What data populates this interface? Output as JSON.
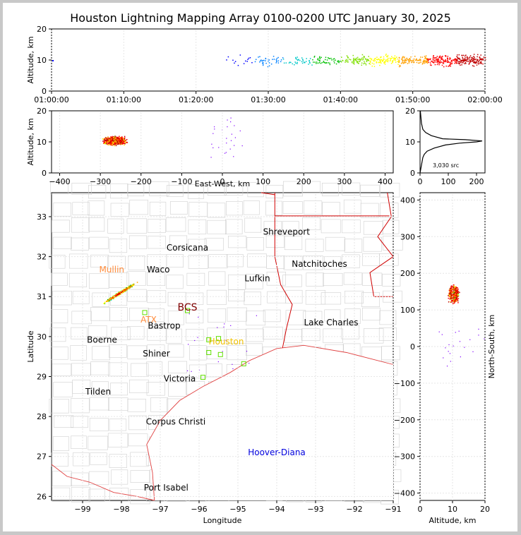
{
  "title": "Houston Lightning Mapping Array 0100-0200 UTC January 30, 2025",
  "chart_data": [
    {
      "type": "scatter",
      "panel": "time-altitude",
      "xlabel": "",
      "ylabel": "Altitude, km",
      "xticks": [
        "01:00:00",
        "01:10:00",
        "01:20:00",
        "01:30:00",
        "01:40:00",
        "01:50:00",
        "02:00:00"
      ],
      "xlim_minutes": [
        0,
        60
      ],
      "ylim": [
        0,
        20
      ],
      "yticks": [
        0,
        10,
        20
      ],
      "activity_start_minutes": 24,
      "peak_altitude_km": 10
    },
    {
      "type": "scatter",
      "panel": "east-west-altitude",
      "xlabel": "East-West, km",
      "ylabel": "Altitude, km",
      "xlim": [
        -420,
        420
      ],
      "xticks": [
        -400,
        -300,
        -200,
        -100,
        0,
        100,
        200,
        300,
        400
      ],
      "ylim": [
        0,
        20
      ],
      "yticks": [
        0,
        10,
        20
      ],
      "cluster_center": [
        -265,
        10.5
      ]
    },
    {
      "type": "line",
      "panel": "altitude-histogram",
      "xlim": [
        0,
        230
      ],
      "xticks": [
        0,
        100,
        200
      ],
      "ylim": [
        0,
        20
      ],
      "yticks": [
        0,
        10,
        20
      ],
      "annotation": "3,030 src",
      "profile": [
        [
          0,
          0
        ],
        [
          2,
          1
        ],
        [
          4,
          2
        ],
        [
          6,
          3
        ],
        [
          8,
          4
        ],
        [
          10,
          5
        ],
        [
          15,
          6
        ],
        [
          25,
          7
        ],
        [
          50,
          8
        ],
        [
          90,
          9
        ],
        [
          140,
          9.6
        ],
        [
          200,
          10
        ],
        [
          220,
          10.3
        ],
        [
          160,
          10.7
        ],
        [
          80,
          11
        ],
        [
          40,
          12
        ],
        [
          20,
          13
        ],
        [
          10,
          14
        ],
        [
          5,
          16
        ],
        [
          3,
          18
        ],
        [
          1,
          20
        ]
      ]
    },
    {
      "type": "scatter",
      "panel": "map",
      "xlabel": "Longitude",
      "ylabel": "Latitude",
      "xlim": [
        -99.8,
        -91.0
      ],
      "xticks": [
        -99,
        -98,
        -97,
        -96,
        -95,
        -94,
        -93,
        -92,
        -91
      ],
      "ylim": [
        25.9,
        33.6
      ],
      "yticks": [
        26,
        27,
        28,
        29,
        30,
        31,
        32,
        33
      ],
      "cities": [
        {
          "name": "Shreveport",
          "lon": -93.75,
          "lat": 32.55,
          "color": "#000000"
        },
        {
          "name": "Corsicana",
          "lon": -96.3,
          "lat": 32.15,
          "color": "#000000"
        },
        {
          "name": "Natchitoches",
          "lon": -92.9,
          "lat": 31.75,
          "color": "#000000"
        },
        {
          "name": "Mullin",
          "lon": -98.25,
          "lat": 31.6,
          "color": "#ff8c3c"
        },
        {
          "name": "Waco",
          "lon": -97.05,
          "lat": 31.6,
          "color": "#000000"
        },
        {
          "name": "Lufkin",
          "lon": -94.5,
          "lat": 31.38,
          "color": "#000000"
        },
        {
          "name": "BCS",
          "lon": -96.3,
          "lat": 30.65,
          "color": "#800000"
        },
        {
          "name": "ATX",
          "lon": -97.3,
          "lat": 30.35,
          "color": "#ff8c3c"
        },
        {
          "name": "Bastrop",
          "lon": -96.9,
          "lat": 30.2,
          "color": "#000000"
        },
        {
          "name": "Lake Charles",
          "lon": -92.6,
          "lat": 30.28,
          "color": "#000000"
        },
        {
          "name": "Houston",
          "lon": -95.3,
          "lat": 29.8,
          "color": "#f0c000"
        },
        {
          "name": "Boerne",
          "lon": -98.5,
          "lat": 29.85,
          "color": "#000000"
        },
        {
          "name": "Shiner",
          "lon": -97.1,
          "lat": 29.5,
          "color": "#000000"
        },
        {
          "name": "Victoria",
          "lon": -96.5,
          "lat": 28.88,
          "color": "#000000"
        },
        {
          "name": "Tilden",
          "lon": -98.6,
          "lat": 28.55,
          "color": "#000000"
        },
        {
          "name": "Corpus Christi",
          "lon": -96.6,
          "lat": 27.8,
          "color": "#000000"
        },
        {
          "name": "Hoover-Diana",
          "lon": -94.0,
          "lat": 27.03,
          "color": "#0000dd"
        },
        {
          "name": "Port Isabel",
          "lon": -96.85,
          "lat": 26.15,
          "color": "#000000"
        }
      ],
      "stations": [
        [
          -97.4,
          30.6
        ],
        [
          -96.3,
          30.65
        ],
        [
          -95.75,
          29.92
        ],
        [
          -95.5,
          29.95
        ],
        [
          -95.75,
          29.6
        ],
        [
          -95.45,
          29.55
        ],
        [
          -94.85,
          29.32
        ],
        [
          -95.9,
          28.98
        ]
      ],
      "cluster_center": [
        -98.05,
        31.1
      ]
    },
    {
      "type": "scatter",
      "panel": "altitude-north-south",
      "xlabel": "Altitude, km",
      "ylabel": "North-South, km",
      "xlim": [
        0,
        20
      ],
      "xticks": [
        0,
        10,
        20
      ],
      "ylim": [
        -420,
        420
      ],
      "yticks": [
        -400,
        -300,
        -200,
        -100,
        0,
        100,
        200,
        300,
        400
      ],
      "cluster_center": [
        10.3,
        145
      ]
    }
  ]
}
